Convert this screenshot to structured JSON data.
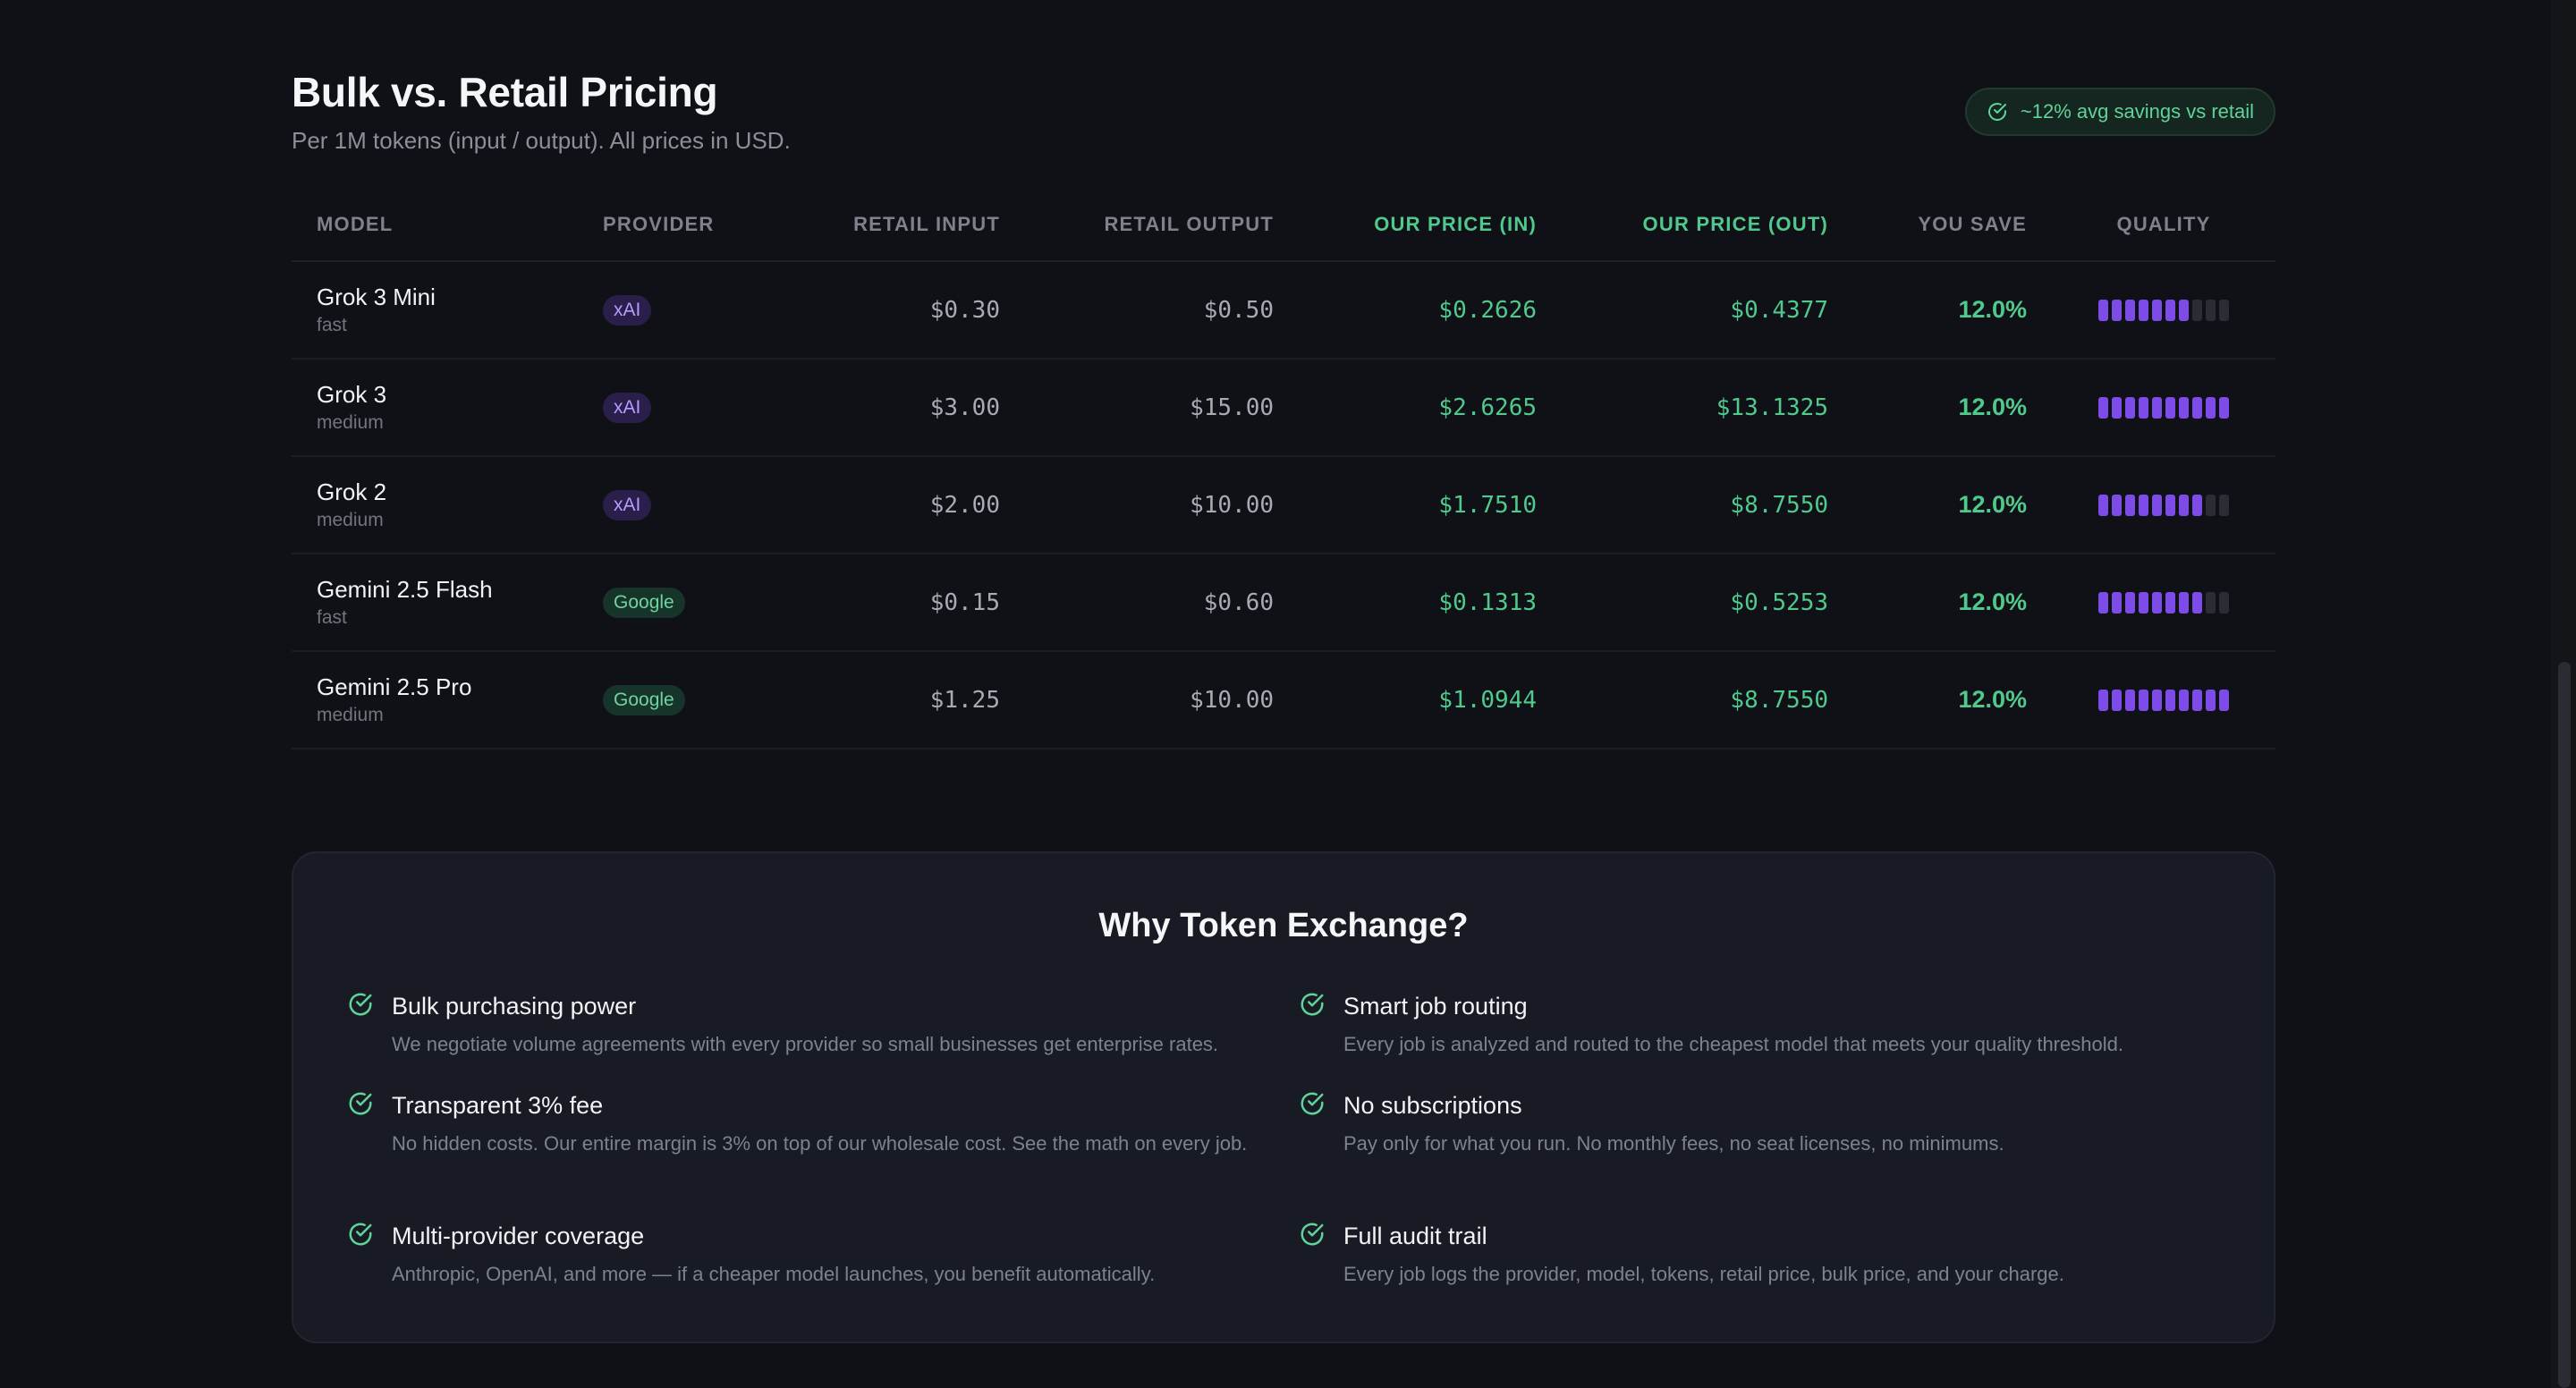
{
  "header": {
    "title": "Bulk vs. Retail Pricing",
    "subtitle": "Per 1M tokens (input / output). All prices in USD.",
    "savings_badge": "~12% avg savings vs retail"
  },
  "table": {
    "columns": [
      "MODEL",
      "PROVIDER",
      "RETAIL INPUT",
      "RETAIL OUTPUT",
      "OUR PRICE (IN)",
      "OUR PRICE (OUT)",
      "YOU SAVE",
      "QUALITY"
    ],
    "rows": [
      {
        "model": "Grok 3 Mini",
        "speed": "fast",
        "provider": "xAI",
        "retail_in": "$0.30",
        "retail_out": "$0.50",
        "our_in": "$0.2626",
        "our_out": "$0.4377",
        "save": "12.0%",
        "quality": 7
      },
      {
        "model": "Grok 3",
        "speed": "medium",
        "provider": "xAI",
        "retail_in": "$3.00",
        "retail_out": "$15.00",
        "our_in": "$2.6265",
        "our_out": "$13.1325",
        "save": "12.0%",
        "quality": 10
      },
      {
        "model": "Grok 2",
        "speed": "medium",
        "provider": "xAI",
        "retail_in": "$2.00",
        "retail_out": "$10.00",
        "our_in": "$1.7510",
        "our_out": "$8.7550",
        "save": "12.0%",
        "quality": 8
      },
      {
        "model": "Gemini 2.5 Flash",
        "speed": "fast",
        "provider": "Google",
        "retail_in": "$0.15",
        "retail_out": "$0.60",
        "our_in": "$0.1313",
        "our_out": "$0.5253",
        "save": "12.0%",
        "quality": 8
      },
      {
        "model": "Gemini 2.5 Pro",
        "speed": "medium",
        "provider": "Google",
        "retail_in": "$1.25",
        "retail_out": "$10.00",
        "our_in": "$1.0944",
        "our_out": "$8.7550",
        "save": "12.0%",
        "quality": 10
      }
    ],
    "quality_max": 10
  },
  "why": {
    "title": "Why Token Exchange?",
    "features": [
      {
        "title": "Bulk purchasing power",
        "desc": "We negotiate volume agreements with every provider so small businesses get enterprise rates."
      },
      {
        "title": "Smart job routing",
        "desc": "Every job is analyzed and routed to the cheapest model that meets your quality threshold."
      },
      {
        "title": "Transparent 3% fee",
        "desc": "No hidden costs. Our entire margin is 3% on top of our wholesale cost. See the math on every job."
      },
      {
        "title": "No subscriptions",
        "desc": "Pay only for what you run. No monthly fees, no seat licenses, no minimums."
      },
      {
        "title": "Multi-provider coverage",
        "desc": "Anthropic, OpenAI, and more — if a cheaper model launches, you benefit automatically."
      },
      {
        "title": "Full audit trail",
        "desc": "Every job logs the provider, model, tokens, retail price, bulk price, and your charge."
      }
    ]
  },
  "colors": {
    "accent_green": "#4fc98c",
    "accent_purple": "#7c4be8",
    "background": "#101117"
  },
  "icons": {
    "check": "check-circle-icon"
  }
}
